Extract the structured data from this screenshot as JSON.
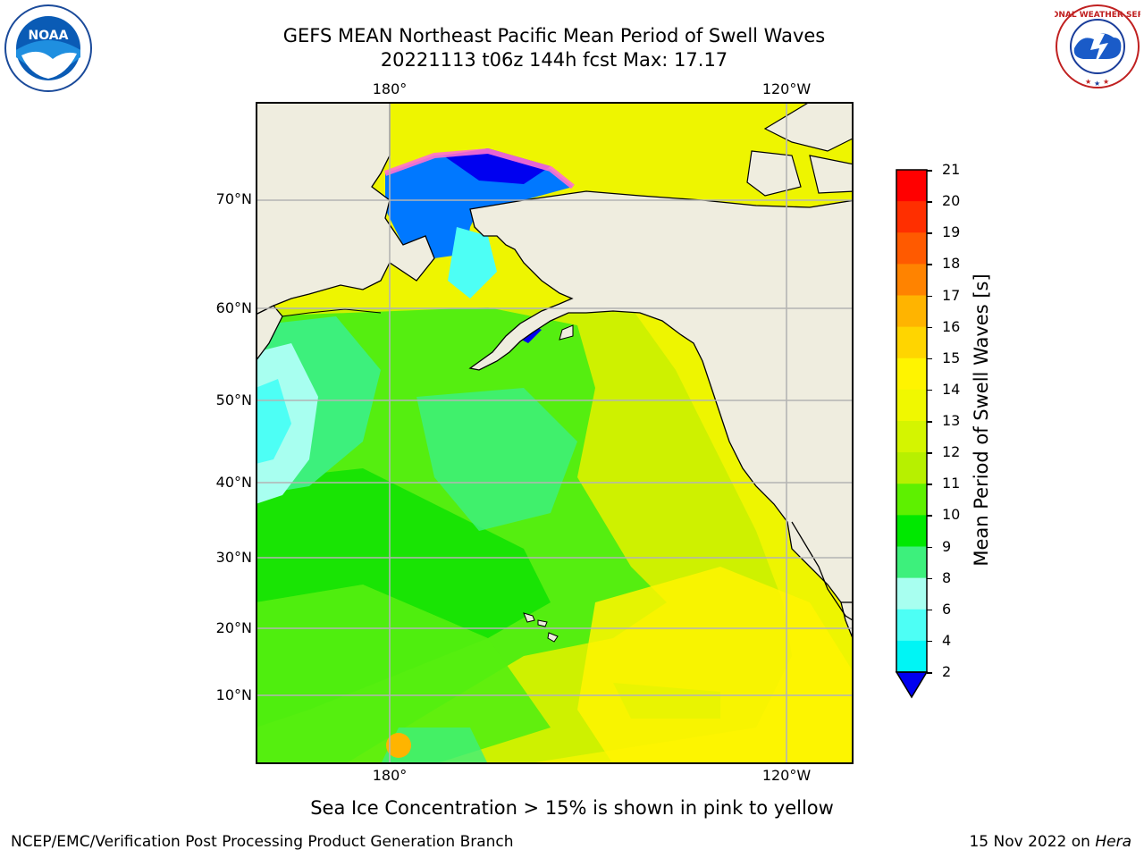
{
  "title": {
    "line1": "GEFS MEAN Northeast Pacific Mean Period of Swell Waves",
    "line2": "20221113 t06z 144h fcst   Max: 17.17"
  },
  "logos": {
    "left": {
      "icon": "noaa-logo-icon",
      "text": "NOAA"
    },
    "right": {
      "icon": "national-weather-service-logo-icon",
      "ring_text": "NATIONAL WEATHER SERVICE"
    }
  },
  "map": {
    "lon_labels_top": [
      "180°",
      "120°W"
    ],
    "lon_labels_bottom": [
      "180°",
      "120°W"
    ],
    "lat_labels": [
      "70°N",
      "60°N",
      "50°N",
      "40°N",
      "30°N",
      "20°N",
      "10°N"
    ],
    "colors": {
      "land": "#efeddf",
      "coast": "#000000",
      "grid": "#b4b4b4"
    }
  },
  "colorbar": {
    "label": "Mean Period of Swell Waves [s]",
    "ticks": [
      "21",
      "20",
      "19",
      "18",
      "17",
      "16",
      "15",
      "14",
      "13",
      "12",
      "11",
      "10",
      "9",
      "8",
      "6",
      "4",
      "2"
    ],
    "colors_top_to_bottom": [
      "#ff0000",
      "#ff2f00",
      "#ff5a00",
      "#ff8300",
      "#ffb400",
      "#ffd500",
      "#fff400",
      "#f0f800",
      "#d4f500",
      "#b7f000",
      "#5ef000",
      "#00e800",
      "#3df07c",
      "#a8fff0",
      "#4dfff5",
      "#00f5f5",
      "#0078ff"
    ],
    "underflow_color": "#0000f0"
  },
  "caption": "Sea Ice Concentration > 15% is shown in pink to yellow",
  "footer": {
    "left": "NCEP/EMC/Verification Post Processing Product Generation Branch",
    "right_date": "15 Nov 2022 on ",
    "right_host": "Hera"
  }
}
